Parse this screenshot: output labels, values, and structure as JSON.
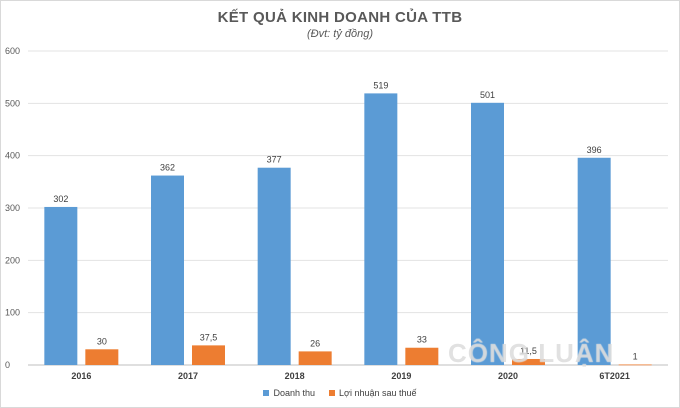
{
  "chart_data": {
    "type": "bar",
    "title": "KẾT QUẢ KINH DOANH CỦA TTB",
    "subtitle": "(Đvt: tỷ đồng)",
    "categories": [
      "2016",
      "2017",
      "2018",
      "2019",
      "2020",
      "6T2021"
    ],
    "series": [
      {
        "name": "Doanh thu",
        "color": "#5b9bd5",
        "values": [
          302,
          362,
          377,
          519,
          501,
          396
        ],
        "labels": [
          "302",
          "362",
          "377",
          "519",
          "501",
          "396"
        ]
      },
      {
        "name": "Lợi nhuận sau thuế",
        "color": "#ed7d31",
        "values": [
          30,
          37.5,
          26,
          33,
          11.5,
          1
        ],
        "labels": [
          "30",
          "37,5",
          "26",
          "33",
          "11,5",
          "1"
        ]
      }
    ],
    "yticks": [
      "0",
      "100",
      "200",
      "300",
      "400",
      "500",
      "600"
    ],
    "ylim": [
      0,
      600
    ],
    "grid": true,
    "legend_position": "bottom"
  },
  "watermark": "CÔNG LUẬN"
}
